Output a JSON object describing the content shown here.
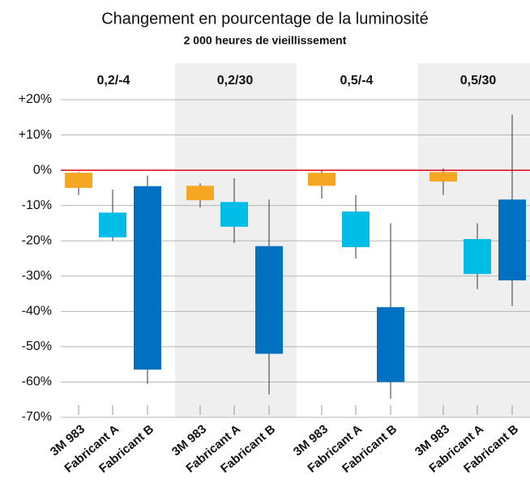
{
  "chart_data": {
    "type": "candlestick",
    "title": "Changement en pourcentage de la luminosité",
    "subtitle": "2 000 heures de vieillissement",
    "categories": [
      "0,2/-4",
      "0,2/30",
      "0,5/-4",
      "0,5/30"
    ],
    "series": [
      {
        "name": "3M 983",
        "color": "#f5a623",
        "box_high": [
          -0.7,
          -4.4,
          -0.7,
          -0.5
        ],
        "box_low": [
          -5,
          -8.5,
          -4.4,
          -3.2
        ],
        "high": [
          -0.5,
          -3.7,
          0,
          0.5
        ],
        "low": [
          -7,
          -10.5,
          -8,
          -7
        ]
      },
      {
        "name": "Fabricant A",
        "color": "#00bde7",
        "box_high": [
          -12,
          -9,
          -11.7,
          -19.5
        ],
        "box_low": [
          -19,
          -16,
          -21.8,
          -29.4
        ],
        "high": [
          -5.5,
          -2.3,
          -7,
          -15
        ],
        "low": [
          -20,
          -20.6,
          -25,
          -33.7
        ]
      },
      {
        "name": "Fabricant B",
        "color": "#0070c0",
        "box_high": [
          -4.5,
          -21.5,
          -38.8,
          -8.3
        ],
        "box_low": [
          -56.5,
          -52,
          -60,
          -31.2
        ],
        "high": [
          -1.5,
          -8.3,
          -15,
          15.8
        ],
        "low": [
          -60.5,
          -63.5,
          -64.7,
          -38.5
        ]
      }
    ],
    "ylim": [
      -70,
      20
    ],
    "yticks": [
      {
        "value": 20,
        "label": "+20%"
      },
      {
        "value": 10,
        "label": "+10%"
      },
      {
        "value": 0,
        "label": "0%"
      },
      {
        "value": -10,
        "label": "-10%"
      },
      {
        "value": -20,
        "label": "-20%"
      },
      {
        "value": -30,
        "label": "-30%"
      },
      {
        "value": -40,
        "label": "-40%"
      },
      {
        "value": -50,
        "label": "-50%"
      },
      {
        "value": -60,
        "label": "-60%"
      },
      {
        "value": -70,
        "label": "-70%"
      }
    ],
    "grid": true,
    "reference_value": 0,
    "reference_color": "#e3001b"
  }
}
